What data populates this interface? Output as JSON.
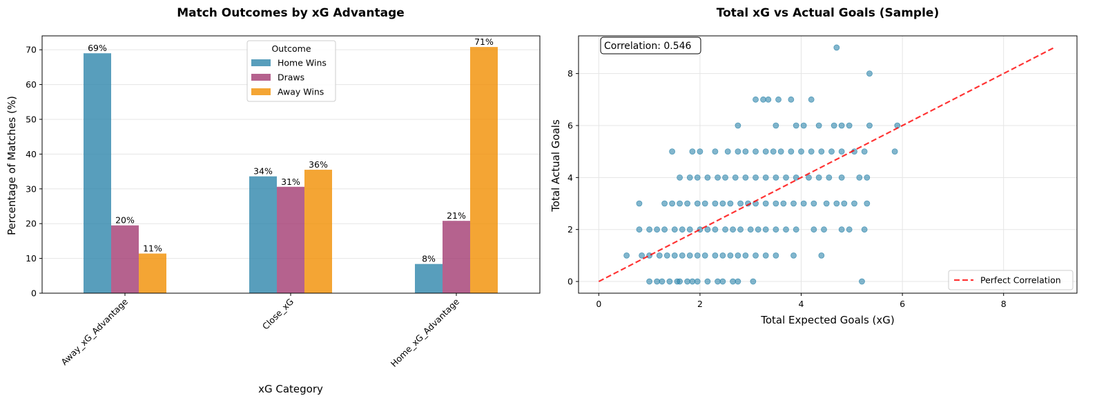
{
  "chart_data": [
    {
      "type": "bar",
      "title": "Match Outcomes by xG Advantage",
      "xlabel": "xG Category",
      "ylabel": "Percentage of Matches (%)",
      "categories": [
        "Away_xG_Advantage",
        "Close_xG",
        "Home_xG_Advantage"
      ],
      "series": [
        {
          "name": "Home Wins",
          "color": "#2e86ab",
          "values": [
            69,
            33.6,
            8.4
          ],
          "labels": [
            "69%",
            "34%",
            "8%"
          ]
        },
        {
          "name": "Draws",
          "color": "#a23b72",
          "values": [
            19.5,
            30.6,
            20.8
          ],
          "labels": [
            "20%",
            "31%",
            "21%"
          ]
        },
        {
          "name": "Away Wins",
          "color": "#f18f01",
          "values": [
            11.4,
            35.5,
            70.8
          ],
          "labels": [
            "11%",
            "36%",
            "71%"
          ]
        }
      ],
      "ylim": [
        0,
        74
      ],
      "yticks": [
        0,
        10,
        20,
        30,
        40,
        50,
        60,
        70
      ],
      "legend": {
        "title": "Outcome",
        "placement": "upper-center"
      },
      "grid": "y"
    },
    {
      "type": "scatter",
      "title": "Total xG vs Actual Goals (Sample)",
      "xlabel": "Total Expected Goals (xG)",
      "ylabel": "Total Actual Goals",
      "color": "#2e86ab",
      "xlim": [
        -0.4,
        9.45
      ],
      "ylim": [
        -0.45,
        9.45
      ],
      "xticks": [
        0,
        2,
        4,
        6,
        8
      ],
      "yticks": [
        0,
        2,
        4,
        6,
        8
      ],
      "grid": "both",
      "annotation": "Correlation: 0.546",
      "reference_line": {
        "name": "Perfect Correlation",
        "color": "#ff0000",
        "from": [
          0,
          0
        ],
        "to": [
          9,
          9
        ]
      },
      "legend": {
        "placement": "lower-right"
      },
      "points": [
        [
          1,
          0
        ],
        [
          1.15,
          0
        ],
        [
          1.25,
          0
        ],
        [
          1.4,
          0
        ],
        [
          1.55,
          0
        ],
        [
          1.6,
          0
        ],
        [
          1.75,
          0
        ],
        [
          1.85,
          0
        ],
        [
          1.95,
          0
        ],
        [
          2.15,
          0
        ],
        [
          2.35,
          0
        ],
        [
          2.45,
          0
        ],
        [
          2.65,
          0
        ],
        [
          2.75,
          0
        ],
        [
          3.05,
          0
        ],
        [
          5.2,
          0
        ],
        [
          0.55,
          1
        ],
        [
          0.85,
          1
        ],
        [
          1,
          1
        ],
        [
          1.2,
          1
        ],
        [
          1.35,
          1
        ],
        [
          1.5,
          1
        ],
        [
          1.65,
          1
        ],
        [
          1.8,
          1
        ],
        [
          1.95,
          1
        ],
        [
          2.1,
          1
        ],
        [
          2.3,
          1
        ],
        [
          2.45,
          1
        ],
        [
          2.6,
          1
        ],
        [
          2.75,
          1
        ],
        [
          2.9,
          1
        ],
        [
          3.1,
          1
        ],
        [
          3.3,
          1
        ],
        [
          3.5,
          1
        ],
        [
          3.85,
          1
        ],
        [
          4.4,
          1
        ],
        [
          0.8,
          2
        ],
        [
          1,
          2
        ],
        [
          1.15,
          2
        ],
        [
          1.3,
          2
        ],
        [
          1.5,
          2
        ],
        [
          1.65,
          2
        ],
        [
          1.8,
          2
        ],
        [
          2,
          2
        ],
        [
          2.15,
          2
        ],
        [
          2.3,
          2
        ],
        [
          2.5,
          2
        ],
        [
          2.65,
          2
        ],
        [
          2.8,
          2
        ],
        [
          3,
          2
        ],
        [
          3.15,
          2
        ],
        [
          3.3,
          2
        ],
        [
          3.5,
          2
        ],
        [
          3.7,
          2
        ],
        [
          3.9,
          2
        ],
        [
          4.25,
          2
        ],
        [
          4.45,
          2
        ],
        [
          4.8,
          2
        ],
        [
          4.95,
          2
        ],
        [
          5.25,
          2
        ],
        [
          0.8,
          3
        ],
        [
          1.3,
          3
        ],
        [
          1.45,
          3
        ],
        [
          1.6,
          3
        ],
        [
          1.75,
          3
        ],
        [
          1.95,
          3
        ],
        [
          2.1,
          3
        ],
        [
          2.3,
          3
        ],
        [
          2.45,
          3
        ],
        [
          2.6,
          3
        ],
        [
          2.8,
          3
        ],
        [
          2.95,
          3
        ],
        [
          3.1,
          3
        ],
        [
          3.3,
          3
        ],
        [
          3.5,
          3
        ],
        [
          3.65,
          3
        ],
        [
          3.85,
          3
        ],
        [
          4.05,
          3
        ],
        [
          4.25,
          3
        ],
        [
          4.5,
          3
        ],
        [
          4.7,
          3
        ],
        [
          4.85,
          3
        ],
        [
          5.05,
          3
        ],
        [
          5.3,
          3
        ],
        [
          1.6,
          4
        ],
        [
          1.8,
          4
        ],
        [
          1.95,
          4
        ],
        [
          2.15,
          4
        ],
        [
          2.35,
          4
        ],
        [
          2.5,
          4
        ],
        [
          2.7,
          4
        ],
        [
          2.9,
          4
        ],
        [
          3.1,
          4
        ],
        [
          3.3,
          4
        ],
        [
          3.5,
          4
        ],
        [
          3.7,
          4
        ],
        [
          3.9,
          4
        ],
        [
          4.15,
          4
        ],
        [
          4.35,
          4
        ],
        [
          4.55,
          4
        ],
        [
          4.8,
          4
        ],
        [
          5.15,
          4
        ],
        [
          5.3,
          4
        ],
        [
          1.45,
          5
        ],
        [
          1.85,
          5
        ],
        [
          2,
          5
        ],
        [
          2.3,
          5
        ],
        [
          2.55,
          5
        ],
        [
          2.75,
          5
        ],
        [
          2.9,
          5
        ],
        [
          3.1,
          5
        ],
        [
          3.3,
          5
        ],
        [
          3.45,
          5
        ],
        [
          3.6,
          5
        ],
        [
          3.8,
          5
        ],
        [
          4,
          5
        ],
        [
          4.2,
          5
        ],
        [
          4.4,
          5
        ],
        [
          4.6,
          5
        ],
        [
          4.8,
          5
        ],
        [
          5.05,
          5
        ],
        [
          5.25,
          5
        ],
        [
          5.85,
          5
        ],
        [
          2.75,
          6
        ],
        [
          3.5,
          6
        ],
        [
          3.9,
          6
        ],
        [
          4.05,
          6
        ],
        [
          4.35,
          6
        ],
        [
          4.65,
          6
        ],
        [
          4.8,
          6
        ],
        [
          4.95,
          6
        ],
        [
          5.35,
          6
        ],
        [
          5.9,
          6
        ],
        [
          3.1,
          7
        ],
        [
          3.25,
          7
        ],
        [
          3.35,
          7
        ],
        [
          3.55,
          7
        ],
        [
          3.8,
          7
        ],
        [
          4.2,
          7
        ],
        [
          5.35,
          8
        ],
        [
          4.7,
          9
        ]
      ]
    }
  ]
}
